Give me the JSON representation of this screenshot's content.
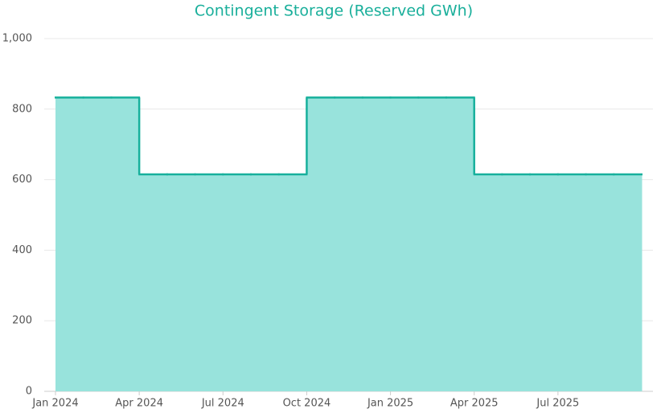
{
  "chart_data": {
    "type": "step-area",
    "title": "Contingent Storage (Reserved GWh)",
    "x": [
      "2024-01",
      "2024-02",
      "2024-03",
      "2024-04",
      "2024-05",
      "2024-06",
      "2024-07",
      "2024-08",
      "2024-09",
      "2024-10",
      "2024-11",
      "2024-12",
      "2025-01",
      "2025-02",
      "2025-03",
      "2025-04",
      "2025-05",
      "2025-06",
      "2025-07",
      "2025-08",
      "2025-09"
    ],
    "values": [
      833,
      833,
      833,
      615,
      615,
      615,
      615,
      615,
      615,
      833,
      833,
      833,
      833,
      833,
      833,
      615,
      615,
      615,
      615,
      615,
      615
    ],
    "xticks": [
      {
        "value": "2024-01",
        "label": "Jan 2024"
      },
      {
        "value": "2024-04",
        "label": "Apr 2024"
      },
      {
        "value": "2024-07",
        "label": "Jul 2024"
      },
      {
        "value": "2024-10",
        "label": "Oct 2024"
      },
      {
        "value": "2025-01",
        "label": "Jan 2025"
      },
      {
        "value": "2025-04",
        "label": "Apr 2025"
      },
      {
        "value": "2025-07",
        "label": "Jul 2025"
      }
    ],
    "ylim": [
      0,
      1000
    ],
    "yticks": [
      0,
      200,
      400,
      600,
      800,
      {
        "value": 1000,
        "label": "1,000"
      }
    ],
    "line_color": "#17b09c",
    "fill_color": "#98e3dc",
    "grid": true
  }
}
